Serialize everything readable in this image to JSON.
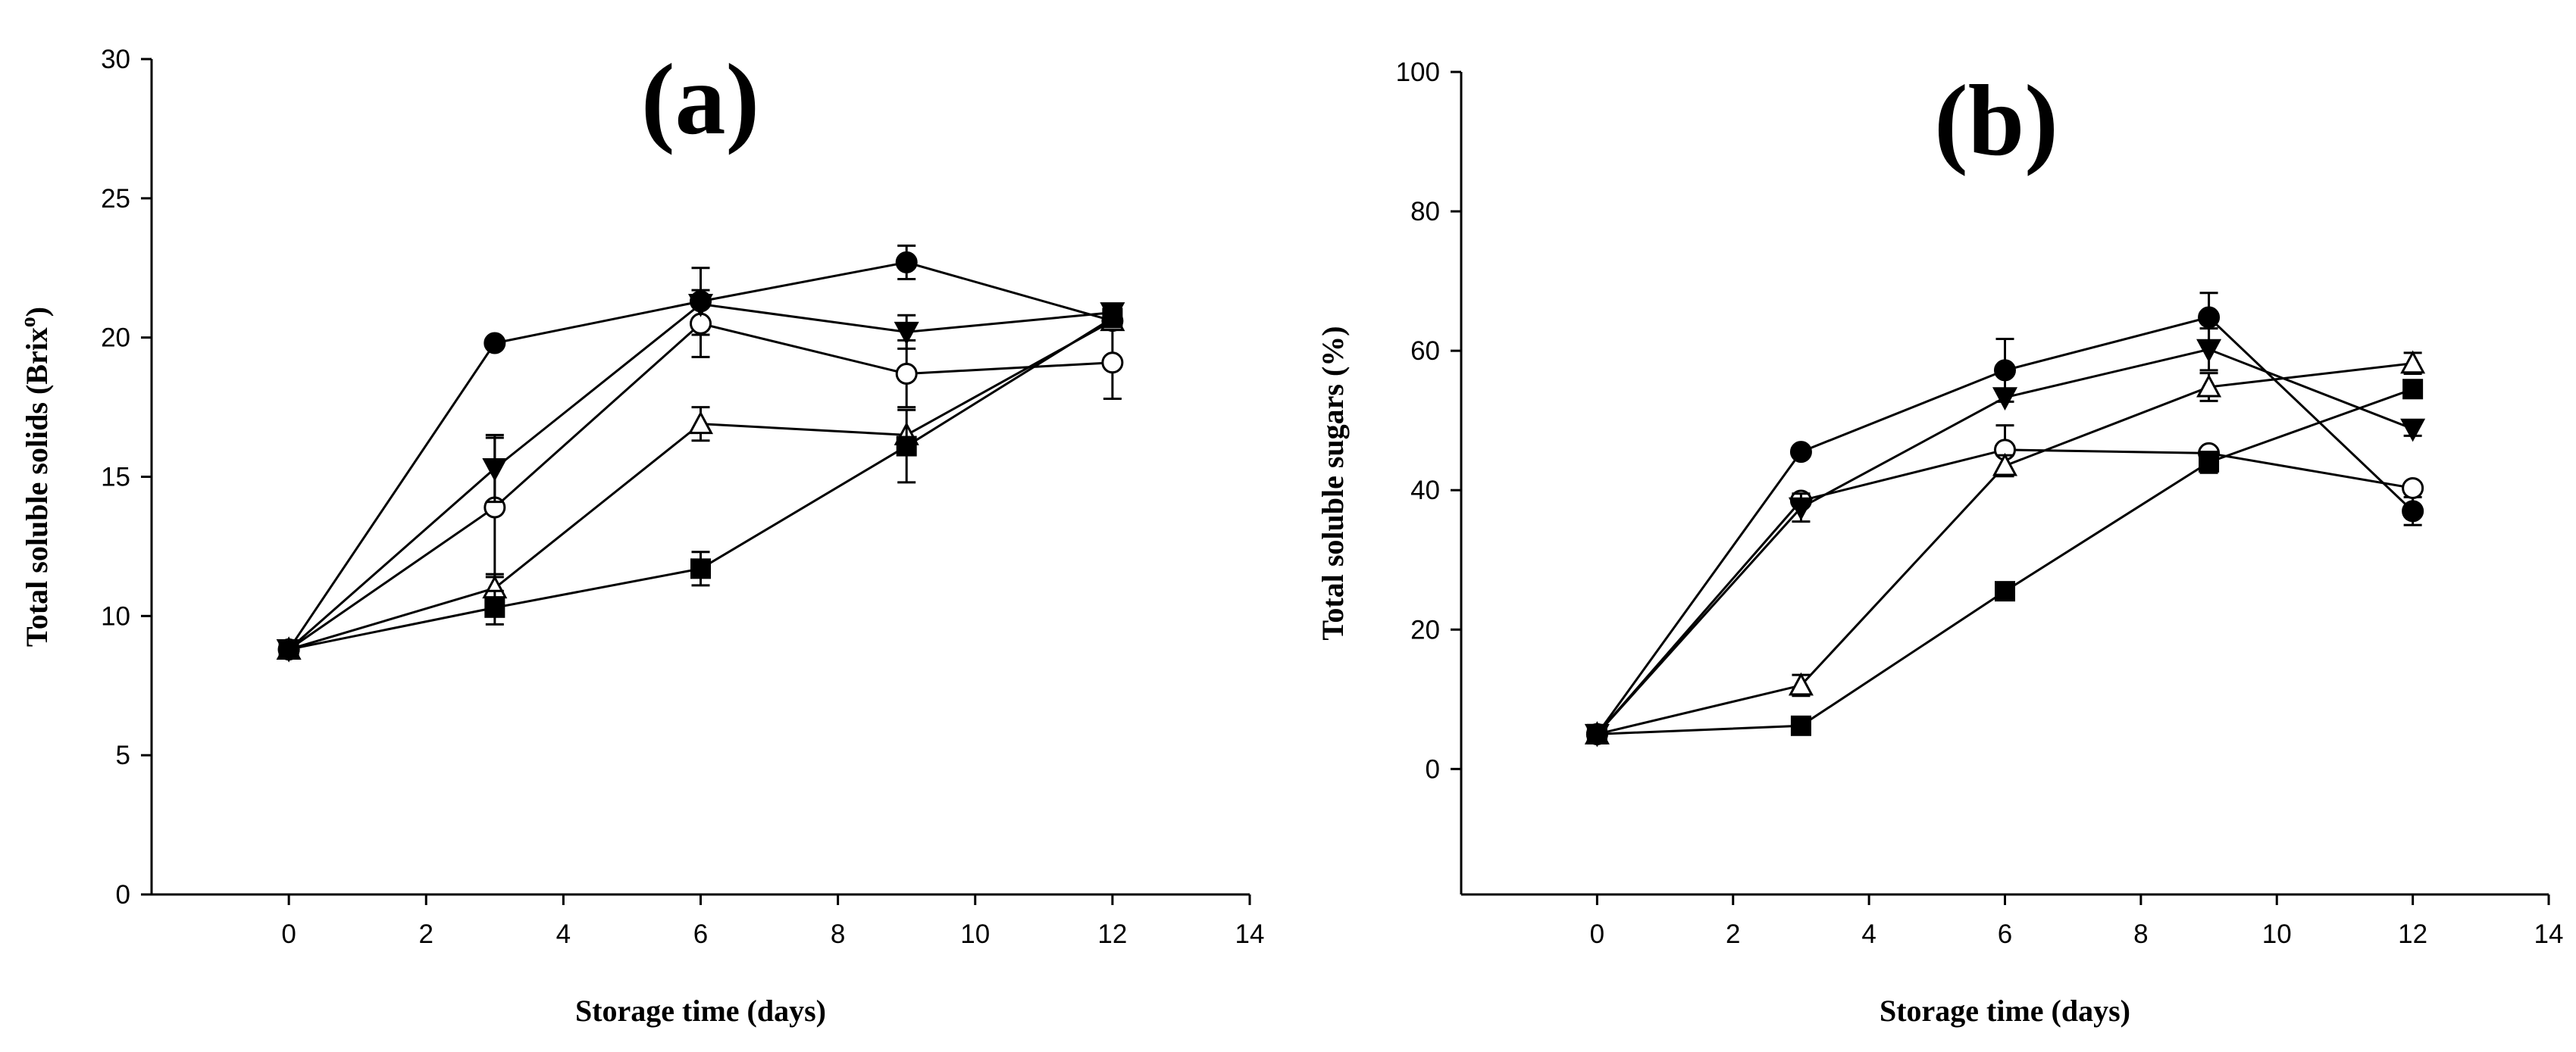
{
  "chart_data": [
    {
      "panel": "(a)",
      "type": "line",
      "xlabel": "Storage time (days)",
      "ylabel": "Total soluble solids (Brix",
      "ylabel_sup": "o",
      "ylabel_end": ")",
      "xlim": [
        -2,
        14
      ],
      "ylim": [
        0,
        30
      ],
      "xticks": [
        0,
        2,
        4,
        6,
        8,
        10,
        12,
        14
      ],
      "yticks": [
        0,
        5,
        10,
        15,
        20,
        25,
        30
      ],
      "x": [
        0,
        3,
        6,
        9,
        12
      ],
      "series": [
        {
          "name": "filled-circle",
          "marker": "circle",
          "fill": "black",
          "values": [
            8.8,
            19.8,
            21.3,
            22.7,
            20.6
          ],
          "errors": [
            0,
            0,
            1.2,
            0.6,
            0
          ]
        },
        {
          "name": "open-circle",
          "marker": "circle",
          "fill": "white",
          "values": [
            8.8,
            13.9,
            20.5,
            18.7,
            19.1
          ],
          "errors": [
            0,
            2.5,
            1.2,
            1.2,
            1.3
          ]
        },
        {
          "name": "filled-triangle-down",
          "marker": "triangle-down",
          "fill": "black",
          "values": [
            8.8,
            15.3,
            21.2,
            20.2,
            20.9
          ],
          "errors": [
            0,
            1.2,
            0,
            0.6,
            0
          ]
        },
        {
          "name": "open-triangle-up",
          "marker": "triangle-up",
          "fill": "white",
          "values": [
            8.8,
            11.0,
            16.9,
            16.5,
            20.6
          ],
          "errors": [
            0,
            0.5,
            0.6,
            0,
            0
          ]
        },
        {
          "name": "filled-square",
          "marker": "square",
          "fill": "black",
          "values": [
            8.8,
            10.3,
            11.7,
            16.1,
            20.7
          ],
          "errors": [
            0,
            0.6,
            0.6,
            1.3,
            0
          ]
        }
      ]
    },
    {
      "panel": "(b)",
      "type": "line",
      "xlabel": "Storage time (days)",
      "ylabel": "Total soluble sugars (%)",
      "ylabel_sup": "",
      "ylabel_end": "",
      "xlim": [
        -2,
        14
      ],
      "ylim": [
        -18,
        100
      ],
      "xticks": [
        0,
        2,
        4,
        6,
        8,
        10,
        12,
        14
      ],
      "yticks": [
        0,
        20,
        40,
        60,
        80,
        100
      ],
      "x": [
        0,
        3,
        6,
        9,
        12
      ],
      "series": [
        {
          "name": "filled-circle",
          "marker": "circle",
          "fill": "black",
          "values": [
            5,
            45.5,
            57.2,
            64.8,
            37
          ],
          "errors": [
            0,
            0,
            4.5,
            3.5,
            2
          ]
        },
        {
          "name": "open-circle",
          "marker": "circle",
          "fill": "white",
          "values": [
            5,
            38.5,
            45.8,
            45.3,
            40.3
          ],
          "errors": [
            0,
            0,
            3.5,
            0,
            0
          ]
        },
        {
          "name": "filled-triangle-down",
          "marker": "triangle-down",
          "fill": "black",
          "values": [
            5,
            37.5,
            53.3,
            60.2,
            48.8
          ],
          "errors": [
            0,
            2,
            0,
            3,
            1
          ]
        },
        {
          "name": "open-triangle-up",
          "marker": "triangle-up",
          "fill": "white",
          "values": [
            5,
            12,
            43.5,
            54.8,
            58.2
          ],
          "errors": [
            0,
            1.5,
            1.5,
            2,
            1.5
          ]
        },
        {
          "name": "filled-square",
          "marker": "square",
          "fill": "black",
          "values": [
            5,
            6.2,
            25.5,
            44,
            54.5
          ],
          "errors": [
            0,
            0,
            1,
            1.5,
            1
          ]
        }
      ]
    }
  ]
}
